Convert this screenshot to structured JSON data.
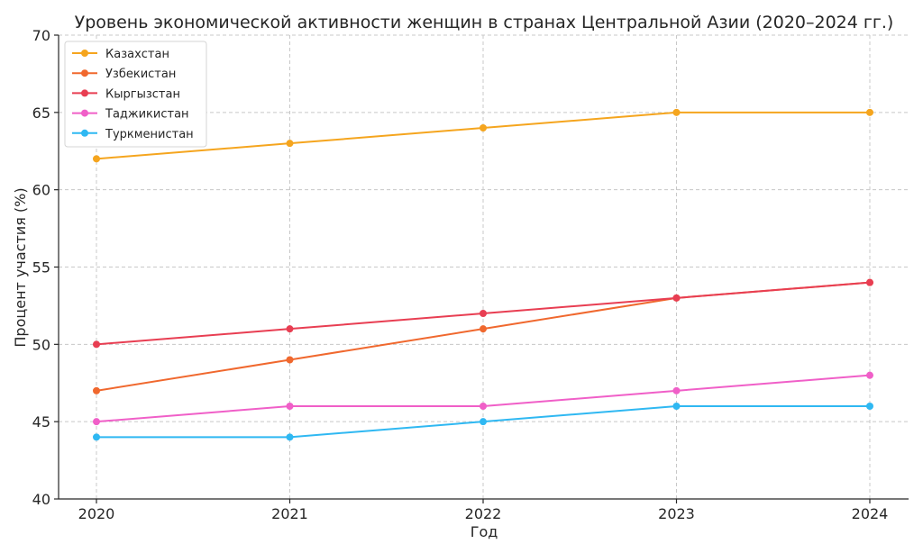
{
  "chart_data": {
    "type": "line",
    "title": "Уровень экономической активности женщин в странах Центральной Азии (2020–2024 гг.)",
    "xlabel": "Год",
    "ylabel": "Процент участия (%)",
    "x": [
      "2020",
      "2021",
      "2022",
      "2023",
      "2024"
    ],
    "ylim": [
      40,
      70
    ],
    "yticks": [
      40,
      45,
      50,
      55,
      60,
      65,
      70
    ],
    "grid": true,
    "legend_position": "top-left",
    "series": [
      {
        "name": "Казахстан",
        "color": "#F5A51E",
        "values": [
          62,
          63,
          64,
          65,
          65
        ]
      },
      {
        "name": "Узбекистан",
        "color": "#F0682E",
        "values": [
          47,
          49,
          51,
          53,
          54
        ]
      },
      {
        "name": "Кыргызстан",
        "color": "#E83E52",
        "values": [
          50,
          51,
          52,
          53,
          54
        ]
      },
      {
        "name": "Таджикистан",
        "color": "#F05FC8",
        "values": [
          45,
          46,
          46,
          47,
          48
        ]
      },
      {
        "name": "Туркменистан",
        "color": "#2FB8F2",
        "values": [
          44,
          44,
          45,
          46,
          46
        ]
      }
    ]
  }
}
